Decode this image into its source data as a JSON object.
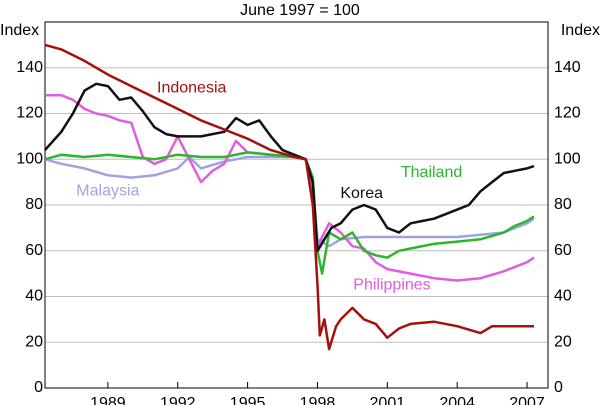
{
  "chart_data": {
    "type": "line",
    "subtitle": "June 1997 = 100",
    "ylabel": "Index",
    "xlim": [
      1986.3,
      2007.9
    ],
    "xticks": [
      1989,
      1992,
      1995,
      1998,
      2001,
      2004,
      2007
    ],
    "ylim": [
      0,
      160
    ],
    "yticks": [
      0,
      20,
      40,
      60,
      80,
      100,
      120,
      140
    ],
    "grid": true,
    "series": [
      {
        "name": "Indonesia",
        "color": "#a50f0f",
        "x": [
          1986.3,
          1987,
          1988,
          1989,
          1990,
          1991,
          1992,
          1993,
          1994,
          1995,
          1996,
          1997,
          1997.5,
          1997.8,
          1998.0,
          1998.1,
          1998.3,
          1998.5,
          1998.8,
          1999,
          1999.5,
          2000,
          2000.5,
          2001,
          2001.5,
          2002,
          2003,
          2004,
          2005,
          2005.5,
          2006,
          2007,
          2007.3
        ],
        "values": [
          150,
          148,
          143,
          137,
          132,
          127,
          122,
          117,
          113,
          109,
          104,
          101,
          100,
          80,
          45,
          23,
          30,
          17,
          27,
          30,
          35,
          30,
          28,
          22,
          26,
          28,
          29,
          27,
          24,
          27,
          27,
          27,
          27
        ]
      },
      {
        "name": "Korea",
        "color": "#111111",
        "x": [
          1986.3,
          1987,
          1987.5,
          1988,
          1988.5,
          1989,
          1989.5,
          1990,
          1990.5,
          1991,
          1991.5,
          1992,
          1993,
          1994,
          1994.5,
          1995,
          1995.5,
          1996,
          1996.5,
          1997,
          1997.5,
          1997.8,
          1998,
          1998.3,
          1998.6,
          1999,
          1999.5,
          2000,
          2000.5,
          2001,
          2001.5,
          2002,
          2002.5,
          2003,
          2003.5,
          2004,
          2004.5,
          2005,
          2005.5,
          2006,
          2006.5,
          2007,
          2007.3
        ],
        "values": [
          104,
          112,
          120,
          130,
          133,
          132,
          126,
          127,
          121,
          114,
          111,
          110,
          110,
          112,
          118,
          115,
          117,
          110,
          104,
          102,
          100,
          90,
          60,
          65,
          70,
          72,
          78,
          80,
          78,
          70,
          68,
          72,
          73,
          74,
          76,
          78,
          80,
          86,
          90,
          94,
          95,
          96,
          97
        ]
      },
      {
        "name": "Thailand",
        "color": "#2db52d",
        "x": [
          1986.3,
          1987,
          1988,
          1989,
          1990,
          1991,
          1992,
          1993,
          1994,
          1995,
          1996,
          1997,
          1997.5,
          1997.8,
          1998,
          1998.2,
          1998.5,
          1999,
          1999.5,
          2000,
          2000.5,
          2001,
          2001.5,
          2002,
          2003,
          2004,
          2005,
          2006,
          2006.5,
          2007,
          2007.3
        ],
        "values": [
          100,
          102,
          101,
          102,
          101,
          100,
          102,
          101,
          101,
          103,
          102,
          101,
          100,
          92,
          60,
          50,
          68,
          65,
          68,
          60,
          58,
          57,
          60,
          61,
          63,
          64,
          65,
          68,
          71,
          73,
          75
        ]
      },
      {
        "name": "Malaysia",
        "color": "#9fa4e0",
        "x": [
          1986.3,
          1987,
          1988,
          1989,
          1990,
          1991,
          1992,
          1992.5,
          1993,
          1994,
          1995,
          1996,
          1997,
          1997.5,
          1997.8,
          1998,
          1998.5,
          1999,
          2000,
          2001,
          2002,
          2003,
          2004,
          2005,
          2006,
          2007,
          2007.3
        ],
        "values": [
          100,
          98,
          96,
          93,
          92,
          93,
          96,
          101,
          96,
          99,
          101,
          101,
          101,
          100,
          90,
          65,
          62,
          65,
          66,
          66,
          66,
          66,
          66,
          67,
          68,
          72,
          74
        ]
      },
      {
        "name": "Philippines",
        "color": "#e05ce0",
        "x": [
          1986.3,
          1987,
          1987.5,
          1988,
          1988.5,
          1989,
          1989.5,
          1990,
          1990.5,
          1991,
          1991.5,
          1992,
          1992.5,
          1993,
          1993.5,
          1994,
          1994.5,
          1995,
          1996,
          1997,
          1997.5,
          1997.8,
          1998,
          1998.5,
          1999,
          1999.5,
          2000,
          2000.5,
          2001,
          2002,
          2003,
          2004,
          2005,
          2006,
          2007,
          2007.3
        ],
        "values": [
          128,
          128,
          126,
          122,
          120,
          119,
          117,
          116,
          101,
          98,
          100,
          110,
          100,
          90,
          95,
          98,
          108,
          103,
          102,
          101,
          100,
          85,
          62,
          72,
          68,
          62,
          61,
          55,
          52,
          50,
          48,
          47,
          48,
          51,
          55,
          57
        ]
      }
    ]
  }
}
